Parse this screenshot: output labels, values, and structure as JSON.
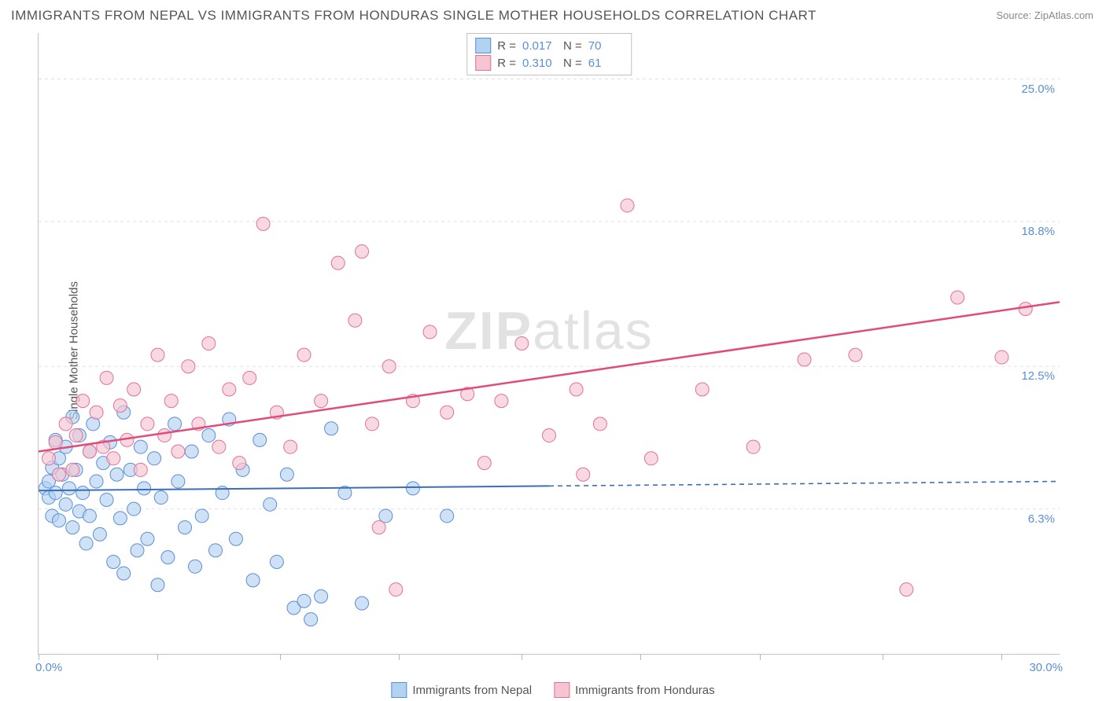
{
  "title": "IMMIGRANTS FROM NEPAL VS IMMIGRANTS FROM HONDURAS SINGLE MOTHER HOUSEHOLDS CORRELATION CHART",
  "source": "Source: ZipAtlas.com",
  "ylabel": "Single Mother Households",
  "watermark_bold": "ZIP",
  "watermark_rest": "atlas",
  "chart": {
    "type": "scatter",
    "xlim": [
      0,
      30
    ],
    "ylim": [
      0,
      27
    ],
    "xtick_positions": [
      0,
      3.5,
      7.1,
      10.6,
      14.2,
      17.7,
      21.2,
      24.8,
      28.3
    ],
    "x_axis_labels": {
      "left": "0.0%",
      "right": "30.0%"
    },
    "y_gridlines": [
      6.3,
      12.5,
      18.8,
      25.0
    ],
    "y_grid_labels": [
      "6.3%",
      "12.5%",
      "18.8%",
      "25.0%"
    ],
    "grid_color": "#e2e2e2",
    "background_color": "#ffffff",
    "axis_label_color": "#5a8fd8",
    "text_color": "#555555",
    "series": [
      {
        "name": "Immigrants from Nepal",
        "color_fill": "#b3d1f0",
        "color_stroke": "#5a8fd8",
        "R": "0.017",
        "N": "70",
        "trend": {
          "x1": 0,
          "y1": 7.1,
          "x2": 15,
          "y2": 7.3,
          "x_dash_to": 30,
          "y_dash_to": 7.5,
          "stroke": "#3a6fb8",
          "width": 2
        },
        "points": [
          [
            0.2,
            7.2
          ],
          [
            0.3,
            7.5
          ],
          [
            0.3,
            6.8
          ],
          [
            0.4,
            8.1
          ],
          [
            0.4,
            6.0
          ],
          [
            0.5,
            7.0
          ],
          [
            0.5,
            9.3
          ],
          [
            0.6,
            8.5
          ],
          [
            0.6,
            5.8
          ],
          [
            0.7,
            7.8
          ],
          [
            0.8,
            6.5
          ],
          [
            0.8,
            9.0
          ],
          [
            0.9,
            7.2
          ],
          [
            1.0,
            10.3
          ],
          [
            1.0,
            5.5
          ],
          [
            1.1,
            8.0
          ],
          [
            1.2,
            6.2
          ],
          [
            1.2,
            9.5
          ],
          [
            1.3,
            7.0
          ],
          [
            1.4,
            4.8
          ],
          [
            1.5,
            8.8
          ],
          [
            1.5,
            6.0
          ],
          [
            1.6,
            10.0
          ],
          [
            1.7,
            7.5
          ],
          [
            1.8,
            5.2
          ],
          [
            1.9,
            8.3
          ],
          [
            2.0,
            6.7
          ],
          [
            2.1,
            9.2
          ],
          [
            2.2,
            4.0
          ],
          [
            2.3,
            7.8
          ],
          [
            2.4,
            5.9
          ],
          [
            2.5,
            10.5
          ],
          [
            2.5,
            3.5
          ],
          [
            2.7,
            8.0
          ],
          [
            2.8,
            6.3
          ],
          [
            2.9,
            4.5
          ],
          [
            3.0,
            9.0
          ],
          [
            3.1,
            7.2
          ],
          [
            3.2,
            5.0
          ],
          [
            3.4,
            8.5
          ],
          [
            3.5,
            3.0
          ],
          [
            3.6,
            6.8
          ],
          [
            3.8,
            4.2
          ],
          [
            4.0,
            10.0
          ],
          [
            4.1,
            7.5
          ],
          [
            4.3,
            5.5
          ],
          [
            4.5,
            8.8
          ],
          [
            4.6,
            3.8
          ],
          [
            4.8,
            6.0
          ],
          [
            5.0,
            9.5
          ],
          [
            5.2,
            4.5
          ],
          [
            5.4,
            7.0
          ],
          [
            5.6,
            10.2
          ],
          [
            5.8,
            5.0
          ],
          [
            6.0,
            8.0
          ],
          [
            6.3,
            3.2
          ],
          [
            6.5,
            9.3
          ],
          [
            6.8,
            6.5
          ],
          [
            7.0,
            4.0
          ],
          [
            7.3,
            7.8
          ],
          [
            7.5,
            2.0
          ],
          [
            7.8,
            2.3
          ],
          [
            8.0,
            1.5
          ],
          [
            8.3,
            2.5
          ],
          [
            8.6,
            9.8
          ],
          [
            9.0,
            7.0
          ],
          [
            9.5,
            2.2
          ],
          [
            10.2,
            6.0
          ],
          [
            11.0,
            7.2
          ],
          [
            12.0,
            6.0
          ]
        ]
      },
      {
        "name": "Immigrants from Honduras",
        "color_fill": "#f5c5d2",
        "color_stroke": "#e27296",
        "R": "0.310",
        "N": "61",
        "trend": {
          "x1": 0,
          "y1": 8.8,
          "x2": 30,
          "y2": 15.3,
          "stroke": "#e24a7a",
          "width": 2.5
        },
        "points": [
          [
            0.3,
            8.5
          ],
          [
            0.5,
            9.2
          ],
          [
            0.6,
            7.8
          ],
          [
            0.8,
            10.0
          ],
          [
            1.0,
            8.0
          ],
          [
            1.1,
            9.5
          ],
          [
            1.3,
            11.0
          ],
          [
            1.5,
            8.8
          ],
          [
            1.7,
            10.5
          ],
          [
            1.9,
            9.0
          ],
          [
            2.0,
            12.0
          ],
          [
            2.2,
            8.5
          ],
          [
            2.4,
            10.8
          ],
          [
            2.6,
            9.3
          ],
          [
            2.8,
            11.5
          ],
          [
            3.0,
            8.0
          ],
          [
            3.2,
            10.0
          ],
          [
            3.5,
            13.0
          ],
          [
            3.7,
            9.5
          ],
          [
            3.9,
            11.0
          ],
          [
            4.1,
            8.8
          ],
          [
            4.4,
            12.5
          ],
          [
            4.7,
            10.0
          ],
          [
            5.0,
            13.5
          ],
          [
            5.3,
            9.0
          ],
          [
            5.6,
            11.5
          ],
          [
            5.9,
            8.3
          ],
          [
            6.2,
            12.0
          ],
          [
            6.6,
            18.7
          ],
          [
            7.0,
            10.5
          ],
          [
            7.4,
            9.0
          ],
          [
            7.8,
            13.0
          ],
          [
            8.3,
            11.0
          ],
          [
            8.8,
            17.0
          ],
          [
            9.3,
            14.5
          ],
          [
            9.5,
            17.5
          ],
          [
            9.8,
            10.0
          ],
          [
            10.0,
            5.5
          ],
          [
            10.3,
            12.5
          ],
          [
            10.5,
            2.8
          ],
          [
            11.0,
            11.0
          ],
          [
            11.5,
            14.0
          ],
          [
            12.0,
            10.5
          ],
          [
            12.6,
            11.3
          ],
          [
            13.1,
            8.3
          ],
          [
            13.6,
            11.0
          ],
          [
            14.2,
            13.5
          ],
          [
            15.0,
            9.5
          ],
          [
            15.8,
            11.5
          ],
          [
            16.0,
            7.8
          ],
          [
            16.5,
            10.0
          ],
          [
            17.3,
            19.5
          ],
          [
            18.0,
            8.5
          ],
          [
            19.5,
            11.5
          ],
          [
            21.0,
            9.0
          ],
          [
            22.5,
            12.8
          ],
          [
            24.0,
            13.0
          ],
          [
            25.5,
            2.8
          ],
          [
            27.0,
            15.5
          ],
          [
            28.3,
            12.9
          ],
          [
            29.0,
            15.0
          ]
        ]
      }
    ]
  },
  "bottom_legend": [
    {
      "label": "Immigrants from Nepal",
      "fill": "#b3d1f0",
      "stroke": "#5a8fd8"
    },
    {
      "label": "Immigrants from Honduras",
      "fill": "#f5c5d2",
      "stroke": "#e27296"
    }
  ]
}
